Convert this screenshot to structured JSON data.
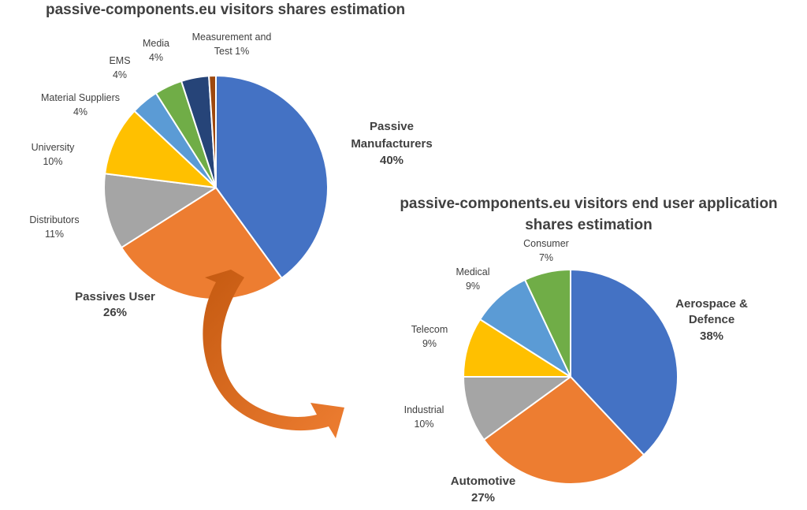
{
  "chart_data": [
    {
      "type": "pie",
      "title": "passive-components.eu visitors shares estimation",
      "slices": [
        {
          "label": "Passive Manufacturers",
          "value_label": "40%",
          "value": 40,
          "color": "#4472C4",
          "emphasis": true
        },
        {
          "label": "Passives User",
          "value_label": "26%",
          "value": 26,
          "color": "#ED7D31",
          "emphasis": true
        },
        {
          "label": "Distributors",
          "value_label": "11%",
          "value": 11,
          "color": "#A5A5A5",
          "emphasis": false
        },
        {
          "label": "University",
          "value_label": "10%",
          "value": 10,
          "color": "#FFC000",
          "emphasis": false
        },
        {
          "label": "Material Suppliers",
          "value_label": "4%",
          "value": 4,
          "color": "#5B9BD5",
          "emphasis": false
        },
        {
          "label": "EMS",
          "value_label": "4%",
          "value": 4,
          "color": "#70AD47",
          "emphasis": false
        },
        {
          "label": "Media",
          "value_label": "4%",
          "value": 4,
          "color": "#264478",
          "emphasis": false
        },
        {
          "label": "Measurement and Test",
          "value_label": "1%",
          "value": 1,
          "color": "#9E480E",
          "emphasis": false
        }
      ]
    },
    {
      "type": "pie",
      "title_lines": [
        "passive-components.eu visitors end user application",
        "shares estimation"
      ],
      "slices": [
        {
          "label": "Aerospace & Defence",
          "value_label": "38%",
          "value": 38,
          "color": "#4472C4",
          "emphasis": true
        },
        {
          "label": "Automotive",
          "value_label": "27%",
          "value": 27,
          "color": "#ED7D31",
          "emphasis": true
        },
        {
          "label": "Industrial",
          "value_label": "10%",
          "value": 10,
          "color": "#A5A5A5",
          "emphasis": false
        },
        {
          "label": "Telecom",
          "value_label": "9%",
          "value": 9,
          "color": "#FFC000",
          "emphasis": false
        },
        {
          "label": "Medical",
          "value_label": "9%",
          "value": 9,
          "color": "#5B9BD5",
          "emphasis": false
        },
        {
          "label": "Consumer",
          "value_label": "7%",
          "value": 7,
          "color": "#70AD47",
          "emphasis": false
        }
      ]
    }
  ],
  "colors": {
    "arrow": "#ED7D31",
    "arrow_dark": "#C55A11",
    "text": "#404040"
  }
}
